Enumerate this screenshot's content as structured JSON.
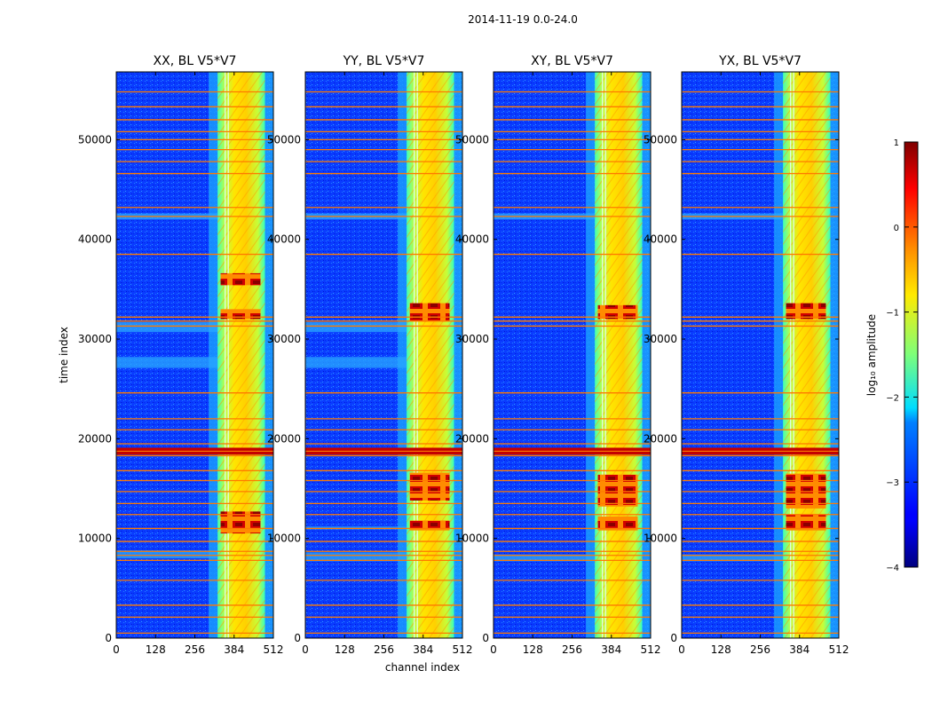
{
  "suptitle": "2014-11-19 0.0-24.0",
  "chart_data": {
    "type": "heatmap",
    "xlabel": "channel index",
    "ylabel": "time index",
    "xlim": [
      0,
      512
    ],
    "ylim": [
      0,
      56800
    ],
    "xticks": [
      0,
      128,
      256,
      384,
      512
    ],
    "yticks": [
      0,
      10000,
      20000,
      30000,
      40000,
      50000
    ],
    "colorscale": "jet",
    "panels": [
      {
        "title": "XX, BL V5*V7",
        "extra_bands": [
          [
            8000,
            8800
          ],
          [
            27100,
            28200
          ],
          [
            30700,
            31700
          ],
          [
            42000,
            42600
          ]
        ],
        "hot_bands": [
          [
            10500,
            12700
          ],
          [
            32000,
            33000
          ],
          [
            35400,
            36600
          ]
        ]
      },
      {
        "title": "YY, BL V5*V7",
        "extra_bands": [
          [
            7700,
            8600
          ],
          [
            10900,
            11200
          ],
          [
            27100,
            28200
          ],
          [
            30700,
            31700
          ],
          [
            42000,
            42600
          ]
        ],
        "hot_bands": [
          [
            10800,
            11800
          ],
          [
            13800,
            16600
          ],
          [
            31800,
            33600
          ]
        ]
      },
      {
        "title": "XY, BL V5*V7",
        "extra_bands": [
          [
            7700,
            8400
          ],
          [
            42000,
            42600
          ]
        ],
        "hot_bands": [
          [
            10800,
            12200
          ],
          [
            13200,
            16400
          ],
          [
            32000,
            33400
          ]
        ]
      },
      {
        "title": "YX, BL V5*V7",
        "extra_bands": [
          [
            7700,
            8400
          ],
          [
            42000,
            42600
          ]
        ],
        "hot_bands": [
          [
            10800,
            12400
          ],
          [
            13000,
            16500
          ],
          [
            32000,
            33600
          ]
        ]
      }
    ],
    "rfi_rows": [
      500,
      2100,
      3300,
      5800,
      7800,
      8300,
      8700,
      9700,
      11000,
      12400,
      13500,
      14700,
      15800,
      16800,
      18300,
      18700,
      19000,
      19500,
      20900,
      22000,
      24600,
      31300,
      31800,
      32200,
      38500,
      42300,
      43200,
      46600,
      47800,
      49000,
      50000,
      50800,
      52000,
      53300,
      54800
    ],
    "hot_row_range": [
      18400,
      19100
    ],
    "bright_channel_range": [
      330,
      485
    ],
    "colorbar": {
      "label": "log₁₀ amplitude",
      "min": -4,
      "max": 1,
      "ticks": [
        1,
        0,
        -1,
        -2,
        -3,
        -4
      ],
      "tick_labels": [
        "1",
        "0",
        "−1",
        "−2",
        "−3",
        "−4"
      ]
    }
  }
}
